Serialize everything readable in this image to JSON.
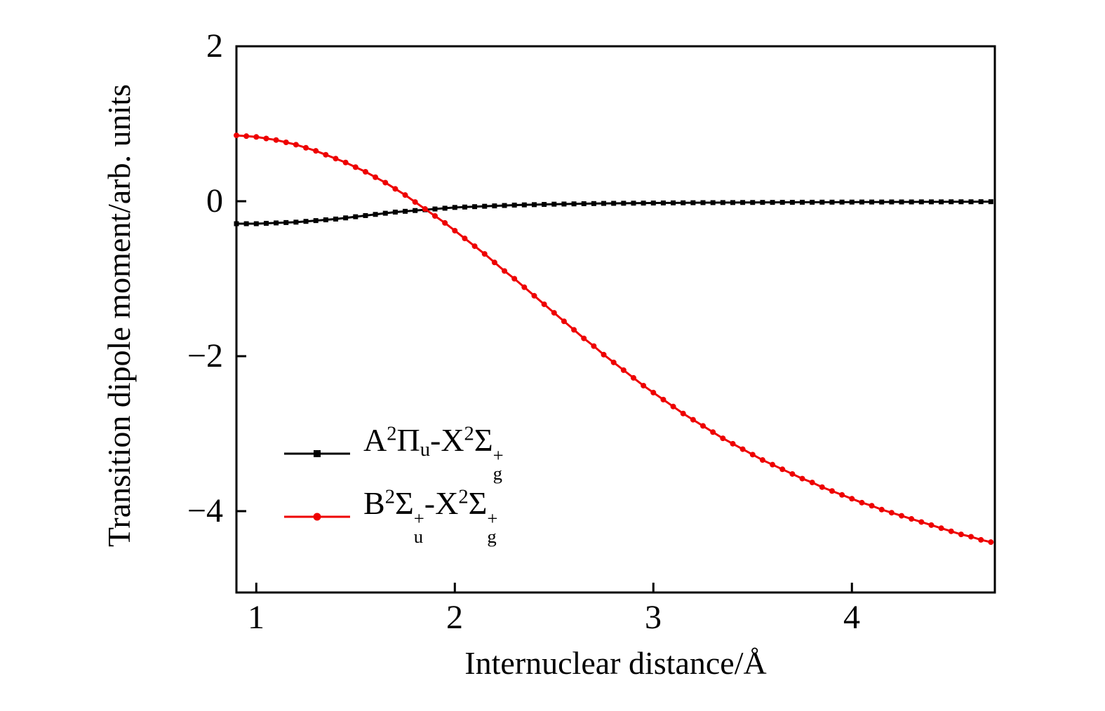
{
  "figure": {
    "background": "#ffffff"
  },
  "chart_data": {
    "type": "line",
    "title": "",
    "xlabel": "Internuclear distance/Å",
    "ylabel": "Transition dipole moment/arb. units",
    "xlim": [
      0.9,
      4.72
    ],
    "ylim": [
      -5.05,
      2
    ],
    "xticks": [
      1,
      2,
      3,
      4
    ],
    "yticks": [
      2,
      0,
      -2,
      -4
    ],
    "xtick_labels": [
      "1",
      "2",
      "3",
      "4"
    ],
    "ytick_labels": [
      "2",
      "0",
      "−2",
      "−4"
    ],
    "grid": false,
    "legend_position": "inside lower-left",
    "axis_color": "#000000",
    "x": [
      0.9,
      0.95,
      1,
      1.05,
      1.1,
      1.15,
      1.2,
      1.25,
      1.3,
      1.35,
      1.4,
      1.45,
      1.5,
      1.55,
      1.6,
      1.65,
      1.7,
      1.75,
      1.8,
      1.85,
      1.9,
      1.95,
      2,
      2.05,
      2.1,
      2.15,
      2.2,
      2.25,
      2.3,
      2.35,
      2.4,
      2.45,
      2.5,
      2.55,
      2.6,
      2.65,
      2.7,
      2.75,
      2.8,
      2.85,
      2.9,
      2.95,
      3,
      3.05,
      3.1,
      3.15,
      3.2,
      3.25,
      3.3,
      3.35,
      3.4,
      3.45,
      3.5,
      3.55,
      3.6,
      3.65,
      3.7,
      3.75,
      3.8,
      3.85,
      3.9,
      3.95,
      4,
      4.05,
      4.1,
      4.15,
      4.2,
      4.25,
      4.3,
      4.35,
      4.4,
      4.45,
      4.5,
      4.55,
      4.6,
      4.65,
      4.7
    ],
    "series": [
      {
        "name": "A2Pi_u - X2Sigma_g+",
        "label_html": "A<sup>2</sup>Π<sub>u</sub>-X<sup>2</sup>Σ<span class='stk'><span>+</span><span>g</span></span>",
        "color": "#000000",
        "marker": "square",
        "values": [
          -0.29,
          -0.29,
          -0.29,
          -0.285,
          -0.28,
          -0.275,
          -0.27,
          -0.26,
          -0.25,
          -0.24,
          -0.23,
          -0.215,
          -0.2,
          -0.185,
          -0.17,
          -0.155,
          -0.14,
          -0.13,
          -0.12,
          -0.11,
          -0.1,
          -0.09,
          -0.08,
          -0.075,
          -0.07,
          -0.065,
          -0.06,
          -0.055,
          -0.05,
          -0.047,
          -0.044,
          -0.041,
          -0.038,
          -0.036,
          -0.034,
          -0.032,
          -0.03,
          -0.028,
          -0.027,
          -0.026,
          -0.025,
          -0.024,
          -0.023,
          -0.022,
          -0.021,
          -0.02,
          -0.019,
          -0.018,
          -0.018,
          -0.017,
          -0.017,
          -0.016,
          -0.016,
          -0.015,
          -0.015,
          -0.014,
          -0.014,
          -0.013,
          -0.013,
          -0.012,
          -0.012,
          -0.011,
          -0.011,
          -0.01,
          -0.01,
          -0.01,
          -0.009,
          -0.009,
          -0.009,
          -0.008,
          -0.008,
          -0.008,
          -0.007,
          -0.007,
          -0.007,
          -0.006,
          -0.006
        ]
      },
      {
        "name": "B2Sigma_u+ - X2Sigma_g+",
        "label_html": "B<sup>2</sup>Σ<span class='stk'><span>+</span><span>u</span></span>-X<sup>2</sup>Σ<span class='stk'><span>+</span><span>g</span></span>",
        "color": "#ee0000",
        "marker": "circle",
        "values": [
          0.85,
          0.84,
          0.83,
          0.81,
          0.79,
          0.76,
          0.73,
          0.69,
          0.65,
          0.6,
          0.55,
          0.5,
          0.44,
          0.38,
          0.31,
          0.24,
          0.16,
          0.08,
          -0.01,
          -0.1,
          -0.19,
          -0.28,
          -0.38,
          -0.48,
          -0.58,
          -0.68,
          -0.79,
          -0.9,
          -1,
          -1.11,
          -1.22,
          -1.33,
          -1.44,
          -1.55,
          -1.66,
          -1.77,
          -1.87,
          -1.98,
          -2.08,
          -2.18,
          -2.28,
          -2.38,
          -2.47,
          -2.56,
          -2.65,
          -2.74,
          -2.82,
          -2.9,
          -2.98,
          -3.06,
          -3.13,
          -3.2,
          -3.27,
          -3.34,
          -3.4,
          -3.46,
          -3.52,
          -3.58,
          -3.63,
          -3.69,
          -3.74,
          -3.79,
          -3.84,
          -3.89,
          -3.93,
          -3.98,
          -4.02,
          -4.06,
          -4.1,
          -4.14,
          -4.18,
          -4.22,
          -4.26,
          -4.3,
          -4.33,
          -4.37,
          -4.4
        ]
      }
    ]
  }
}
